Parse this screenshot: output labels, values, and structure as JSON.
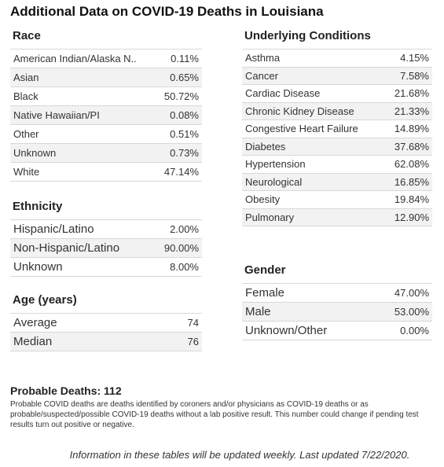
{
  "title": "Additional Data on COVID-19 Deaths in Louisiana",
  "race": {
    "header": "Race",
    "rows": [
      [
        "American Indian/Alaska N..",
        "0.11%"
      ],
      [
        "Asian",
        "0.65%"
      ],
      [
        "Black",
        "50.72%"
      ],
      [
        "Native Hawaiian/PI",
        "0.08%"
      ],
      [
        "Other",
        "0.51%"
      ],
      [
        "Unknown",
        "0.73%"
      ],
      [
        "White",
        "47.14%"
      ]
    ]
  },
  "ethnicity": {
    "header": "Ethnicity",
    "rows": [
      [
        "Hispanic/Latino",
        "2.00%"
      ],
      [
        "Non-Hispanic/Latino",
        "90.00%"
      ],
      [
        "Unknown",
        "8.00%"
      ]
    ]
  },
  "age": {
    "header": "Age (years)",
    "rows": [
      [
        "Average",
        "74"
      ],
      [
        "Median",
        "76"
      ]
    ]
  },
  "conditions": {
    "header": "Underlying Conditions",
    "rows": [
      [
        "Asthma",
        "4.15%"
      ],
      [
        "Cancer",
        "7.58%"
      ],
      [
        "Cardiac Disease",
        "21.68%"
      ],
      [
        "Chronic Kidney Disease",
        "21.33%"
      ],
      [
        "Congestive Heart Failure",
        "14.89%"
      ],
      [
        "Diabetes",
        "37.68%"
      ],
      [
        "Hypertension",
        "62.08%"
      ],
      [
        "Neurological",
        "16.85%"
      ],
      [
        "Obesity",
        "19.84%"
      ],
      [
        "Pulmonary",
        "12.90%"
      ]
    ]
  },
  "gender": {
    "header": "Gender",
    "rows": [
      [
        "Female",
        "47.00%"
      ],
      [
        "Male",
        "53.00%"
      ],
      [
        "Unknown/Other",
        "0.00%"
      ]
    ]
  },
  "probable": {
    "title": "Probable Deaths: 112",
    "note": "Probable COVID deaths are deaths identified by coroners and/or physicians as COVID-19 deaths or as probable/suspected/possible COVID-19 deaths without a lab positive result. This number could change if pending test results turn out positive or negative."
  },
  "footer": "Information in these tables will be updated weekly. Last updated 7/22/2020."
}
